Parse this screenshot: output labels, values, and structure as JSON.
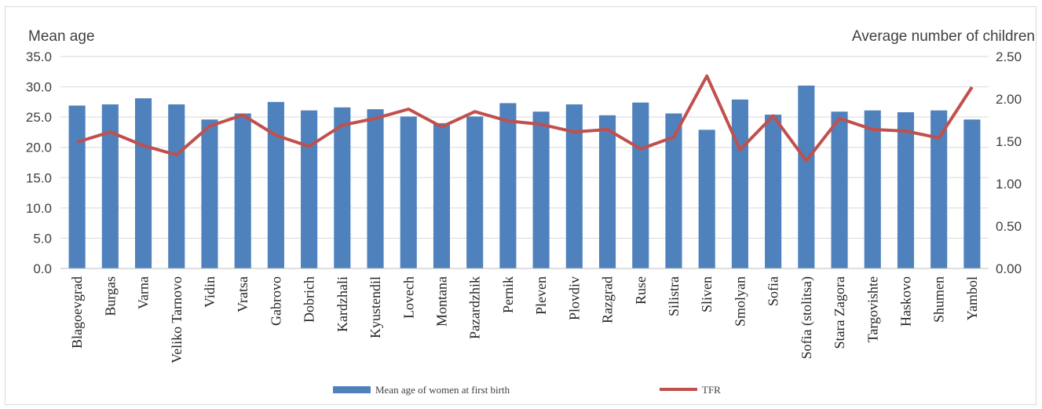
{
  "chart_data": {
    "type": "bar",
    "categories": [
      "Blagoevgrad",
      "Burgas",
      "Varna",
      "Veliko Tarnovo",
      "Vidin",
      "Vratsa",
      "Gabrovo",
      "Dobrich",
      "Kardzhali",
      "Kyustendil",
      "Lovech",
      "Montana",
      "Pazardzhik",
      "Pernik",
      "Pleven",
      "Plovdiv",
      "Razgrad",
      "Ruse",
      "Silistra",
      "Sliven",
      "Smolyan",
      "Sofia",
      "Sofia (stolitsa)",
      "Stara Zagora",
      "Targovishte",
      "Haskovo",
      "Shumen",
      "Yambol"
    ],
    "series": [
      {
        "name": "Mean age of women at first birth",
        "type": "bar",
        "axis": "left",
        "color": "#4f81bd",
        "values": [
          26.9,
          27.1,
          28.1,
          27.1,
          24.6,
          25.6,
          27.5,
          26.1,
          26.6,
          26.3,
          25.1,
          24.0,
          25.1,
          27.3,
          25.9,
          27.1,
          25.3,
          27.4,
          25.6,
          22.9,
          27.9,
          25.4,
          30.2,
          25.9,
          26.1,
          25.8,
          26.1,
          24.6
        ]
      },
      {
        "name": "TFR",
        "type": "line",
        "axis": "right",
        "color": "#c0504d",
        "values": [
          1.49,
          1.61,
          1.45,
          1.34,
          1.68,
          1.81,
          1.57,
          1.44,
          1.69,
          1.77,
          1.88,
          1.67,
          1.85,
          1.74,
          1.7,
          1.61,
          1.64,
          1.41,
          1.55,
          2.27,
          1.4,
          1.8,
          1.27,
          1.77,
          1.64,
          1.62,
          1.54,
          2.14
        ]
      }
    ],
    "y_left": {
      "label": "Mean age",
      "ylim": [
        0,
        35
      ],
      "ticks": [
        "0.0",
        "5.0",
        "10.0",
        "15.0",
        "20.0",
        "25.0",
        "30.0",
        "35.0"
      ]
    },
    "y_right": {
      "label": "Average number of children",
      "ylim": [
        0,
        2.5
      ],
      "ticks": [
        "0.00",
        "0.50",
        "1.00",
        "1.50",
        "2.00",
        "2.50"
      ]
    },
    "grid": true,
    "legend": "bottom"
  }
}
